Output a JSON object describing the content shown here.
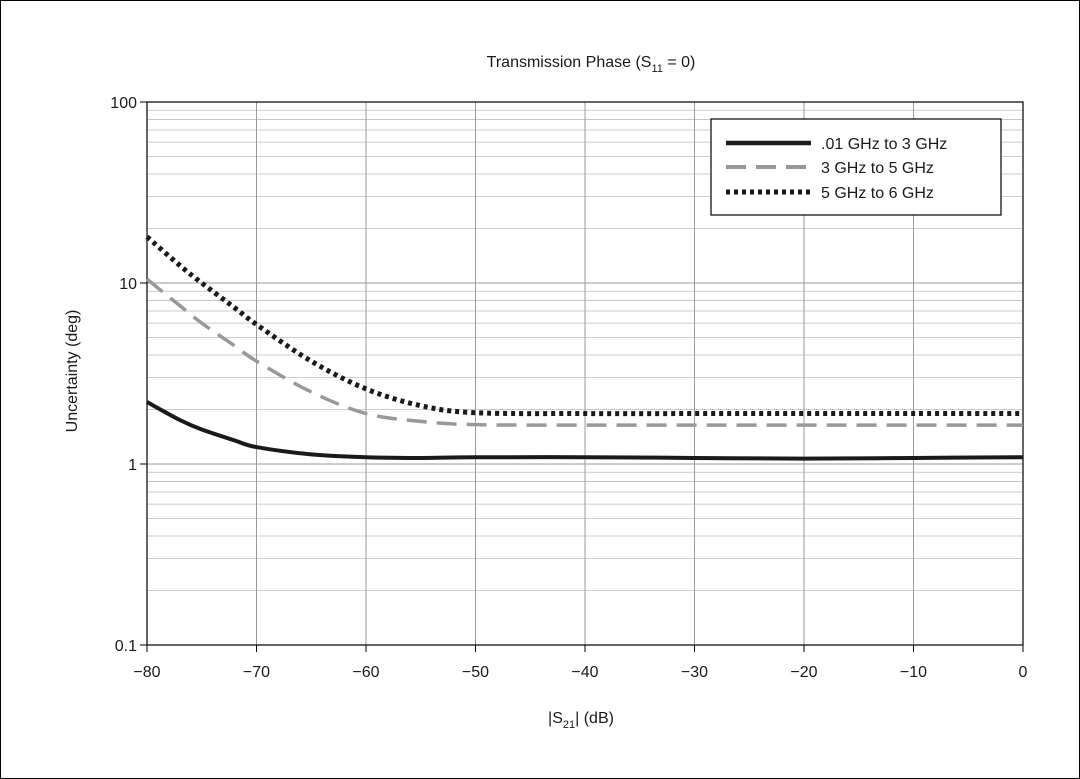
{
  "chart_data": {
    "type": "line",
    "title": {
      "prefix": "Transmission Phase (S",
      "sub": "11",
      "suffix": " = 0)"
    },
    "xlabel": {
      "prefix": "|S",
      "sub": "21",
      "suffix": "| (dB)"
    },
    "ylabel": "Uncertainty (deg)",
    "x_scale": "linear",
    "y_scale": "log",
    "xlim": [
      -80,
      0
    ],
    "ylim": [
      0.1,
      100
    ],
    "x_ticks": [
      -80,
      -70,
      -60,
      -50,
      -40,
      -30,
      -20,
      -10,
      0
    ],
    "x_tick_labels": [
      "−80",
      "−70",
      "−60",
      "−50",
      "−40",
      "−30",
      "−20",
      "−10",
      "0"
    ],
    "y_ticks": [
      0.1,
      1,
      10,
      100
    ],
    "y_tick_labels": [
      "0.1",
      "1",
      "10",
      "100"
    ],
    "grid": true,
    "legend_position": "top-right",
    "series": [
      {
        "name": ".01 GHz to 3 GHz",
        "color": "#1a1a1a",
        "style": "solid",
        "x": [
          -80,
          -77,
          -75,
          -72,
          -70,
          -65,
          -60,
          -55,
          -50,
          -40,
          -30,
          -20,
          -10,
          0
        ],
        "y": [
          2.2,
          1.75,
          1.55,
          1.35,
          1.24,
          1.13,
          1.09,
          1.08,
          1.09,
          1.09,
          1.08,
          1.07,
          1.08,
          1.09
        ]
      },
      {
        "name": "3 GHz to 5 GHz",
        "color": "#999999",
        "style": "dashed",
        "x": [
          -80,
          -77,
          -75,
          -72,
          -70,
          -65,
          -60,
          -55,
          -50,
          -40,
          -30,
          -20,
          -10,
          0
        ],
        "y": [
          10.5,
          7.5,
          6.0,
          4.5,
          3.7,
          2.5,
          1.9,
          1.72,
          1.65,
          1.64,
          1.64,
          1.64,
          1.64,
          1.64
        ]
      },
      {
        "name": "5 GHz to 6 GHz",
        "color": "#1a1a1a",
        "style": "dotted",
        "x": [
          -80,
          -77,
          -75,
          -72,
          -70,
          -65,
          -60,
          -55,
          -50,
          -40,
          -30,
          -20,
          -10,
          0
        ],
        "y": [
          18,
          12.5,
          10,
          7.3,
          5.9,
          3.7,
          2.6,
          2.1,
          1.92,
          1.9,
          1.9,
          1.9,
          1.9,
          1.9
        ]
      }
    ]
  }
}
